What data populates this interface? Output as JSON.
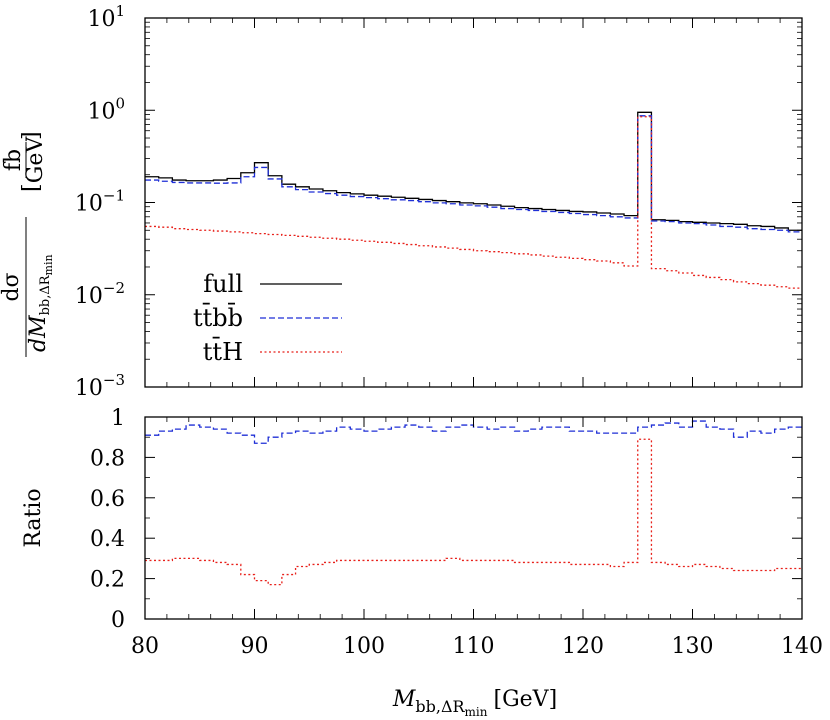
{
  "chart_data": [
    {
      "type": "line",
      "step": true,
      "panel": "top",
      "yscale": "log",
      "xlim": [
        80,
        140
      ],
      "ylim": [
        0.001,
        10
      ],
      "ytick_labels": [
        "10",
        "10",
        "10",
        "10",
        "10"
      ],
      "ytick_exponents": [
        "1",
        "0",
        "−1",
        "−2",
        "−3"
      ],
      "ylabel_numerator": "dσ",
      "ylabel_denominator": "dM",
      "ylabel_denominator_sub": "bb,ΔR",
      "ylabel_denominator_subsub": "min",
      "yunit_numerator": "fb",
      "yunit_denominator": "GeV",
      "legend_position": "lower-left",
      "bin_edges": [
        80,
        81.25,
        82.5,
        83.75,
        85,
        86.25,
        87.5,
        88.75,
        90,
        91.25,
        92.5,
        93.75,
        95,
        96.25,
        97.5,
        98.75,
        100,
        101.25,
        102.5,
        103.75,
        105,
        106.25,
        107.5,
        108.75,
        110,
        111.25,
        112.5,
        113.75,
        115,
        116.25,
        117.5,
        118.75,
        120,
        121.25,
        122.5,
        123.75,
        125,
        126.25,
        127.5,
        128.75,
        130,
        131.25,
        132.5,
        133.75,
        135,
        136.25,
        137.5,
        138.75,
        140
      ],
      "series": [
        {
          "name": "full",
          "color": "#000000",
          "dash": "solid",
          "values": [
            0.19,
            0.185,
            0.175,
            0.172,
            0.172,
            0.175,
            0.182,
            0.21,
            0.27,
            0.195,
            0.158,
            0.148,
            0.14,
            0.134,
            0.128,
            0.124,
            0.12,
            0.117,
            0.114,
            0.111,
            0.108,
            0.105,
            0.102,
            0.099,
            0.097,
            0.094,
            0.091,
            0.088,
            0.086,
            0.084,
            0.082,
            0.08,
            0.079,
            0.077,
            0.075,
            0.072,
            0.95,
            0.065,
            0.064,
            0.062,
            0.061,
            0.06,
            0.059,
            0.058,
            0.056,
            0.055,
            0.053,
            0.05
          ]
        },
        {
          "name": "tt̄bb̄",
          "color": "#1f2fd6",
          "dash": "dashed",
          "values": [
            0.175,
            0.17,
            0.165,
            0.163,
            0.163,
            0.162,
            0.163,
            0.19,
            0.24,
            0.18,
            0.148,
            0.138,
            0.13,
            0.125,
            0.12,
            0.116,
            0.113,
            0.11,
            0.107,
            0.105,
            0.102,
            0.099,
            0.097,
            0.094,
            0.092,
            0.089,
            0.086,
            0.084,
            0.082,
            0.08,
            0.078,
            0.076,
            0.074,
            0.072,
            0.07,
            0.068,
            0.87,
            0.063,
            0.062,
            0.06,
            0.059,
            0.057,
            0.055,
            0.054,
            0.052,
            0.051,
            0.05,
            0.048
          ]
        },
        {
          "name": "tt̄H",
          "color": "#e8201a",
          "dash": "dotted",
          "values": [
            0.055,
            0.054,
            0.052,
            0.051,
            0.05,
            0.049,
            0.048,
            0.047,
            0.046,
            0.045,
            0.044,
            0.043,
            0.042,
            0.041,
            0.04,
            0.039,
            0.038,
            0.037,
            0.036,
            0.035,
            0.034,
            0.033,
            0.032,
            0.031,
            0.03,
            0.0293,
            0.0286,
            0.0278,
            0.027,
            0.0262,
            0.0255,
            0.0248,
            0.024,
            0.0232,
            0.0222,
            0.0205,
            0.85,
            0.0192,
            0.0182,
            0.0172,
            0.0162,
            0.0154,
            0.0146,
            0.0138,
            0.0132,
            0.0127,
            0.0122,
            0.0118
          ]
        }
      ]
    },
    {
      "type": "line",
      "step": true,
      "panel": "bottom",
      "yscale": "linear",
      "xlim": [
        80,
        140
      ],
      "ylim": [
        0,
        1
      ],
      "ytick_labels": [
        "0",
        "0.2",
        "0.4",
        "0.6",
        "0.8",
        "1"
      ],
      "xtick_labels": [
        "80",
        "90",
        "100",
        "110",
        "120",
        "130",
        "140"
      ],
      "ylabel": "Ratio",
      "xlabel_main": "M",
      "xlabel_sub": "bb,ΔR",
      "xlabel_subsub": "min",
      "xlabel_unit": "[GeV]",
      "bin_edges": [
        80,
        81.25,
        82.5,
        83.75,
        85,
        86.25,
        87.5,
        88.75,
        90,
        91.25,
        92.5,
        93.75,
        95,
        96.25,
        97.5,
        98.75,
        100,
        101.25,
        102.5,
        103.75,
        105,
        106.25,
        107.5,
        108.75,
        110,
        111.25,
        112.5,
        113.75,
        115,
        116.25,
        117.5,
        118.75,
        120,
        121.25,
        122.5,
        123.75,
        125,
        126.25,
        127.5,
        128.75,
        130,
        131.25,
        132.5,
        133.75,
        135,
        136.25,
        137.5,
        138.75,
        140
      ],
      "series": [
        {
          "name": "tt̄bb̄",
          "color": "#1f2fd6",
          "dash": "dashed",
          "values": [
            0.91,
            0.93,
            0.94,
            0.96,
            0.95,
            0.94,
            0.92,
            0.91,
            0.87,
            0.9,
            0.92,
            0.93,
            0.92,
            0.93,
            0.95,
            0.94,
            0.93,
            0.94,
            0.95,
            0.96,
            0.95,
            0.93,
            0.95,
            0.96,
            0.95,
            0.94,
            0.95,
            0.93,
            0.94,
            0.95,
            0.95,
            0.93,
            0.93,
            0.92,
            0.92,
            0.92,
            0.95,
            0.96,
            0.97,
            0.95,
            0.98,
            0.95,
            0.94,
            0.9,
            0.93,
            0.92,
            0.94,
            0.95
          ]
        },
        {
          "name": "tt̄H",
          "color": "#e8201a",
          "dash": "dotted",
          "values": [
            0.29,
            0.29,
            0.3,
            0.3,
            0.29,
            0.28,
            0.27,
            0.22,
            0.19,
            0.17,
            0.22,
            0.26,
            0.27,
            0.28,
            0.29,
            0.29,
            0.29,
            0.29,
            0.29,
            0.29,
            0.29,
            0.29,
            0.3,
            0.29,
            0.29,
            0.29,
            0.29,
            0.28,
            0.28,
            0.28,
            0.28,
            0.27,
            0.27,
            0.27,
            0.26,
            0.28,
            0.89,
            0.28,
            0.27,
            0.26,
            0.27,
            0.26,
            0.25,
            0.24,
            0.24,
            0.24,
            0.25,
            0.25
          ]
        }
      ]
    }
  ]
}
